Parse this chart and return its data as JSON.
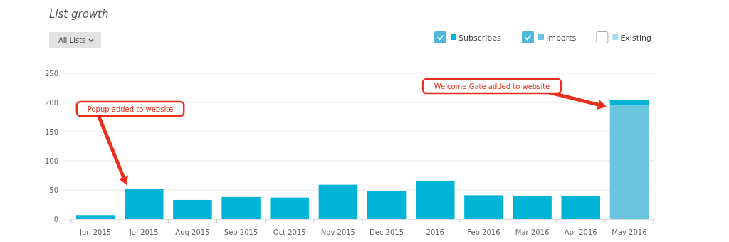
{
  "chart_data": {
    "type": "bar",
    "title": "List growth",
    "categories": [
      "Jun 2015",
      "Jul 2015",
      "Aug 2015",
      "Sep 2015",
      "Oct 2015",
      "Nov 2015",
      "Dec 2015",
      "2016",
      "Feb 2016",
      "Mar 2016",
      "Apr 2016",
      "May 2016"
    ],
    "stacked": true,
    "series": [
      {
        "name": "Imports",
        "color": "#6ac5de",
        "values": [
          null,
          null,
          null,
          null,
          null,
          null,
          null,
          null,
          null,
          null,
          null,
          196
        ]
      },
      {
        "name": "Subscribes",
        "color": "#00b4d6",
        "values": [
          7,
          52,
          33,
          38,
          37,
          59,
          48,
          66,
          41,
          39,
          39,
          8
        ]
      },
      {
        "name": "Existing",
        "color": "#a8e0f0",
        "values": [
          null,
          null,
          null,
          null,
          null,
          null,
          null,
          null,
          null,
          null,
          null,
          null
        ]
      }
    ],
    "ylim": [
      0,
      250
    ],
    "yticks": [
      0,
      50,
      100,
      150,
      200,
      250
    ],
    "grid": "y",
    "legend": "top right",
    "annotations": [
      "All Lists",
      "Popup added to website",
      "Welcome Gate added to website"
    ]
  }
}
